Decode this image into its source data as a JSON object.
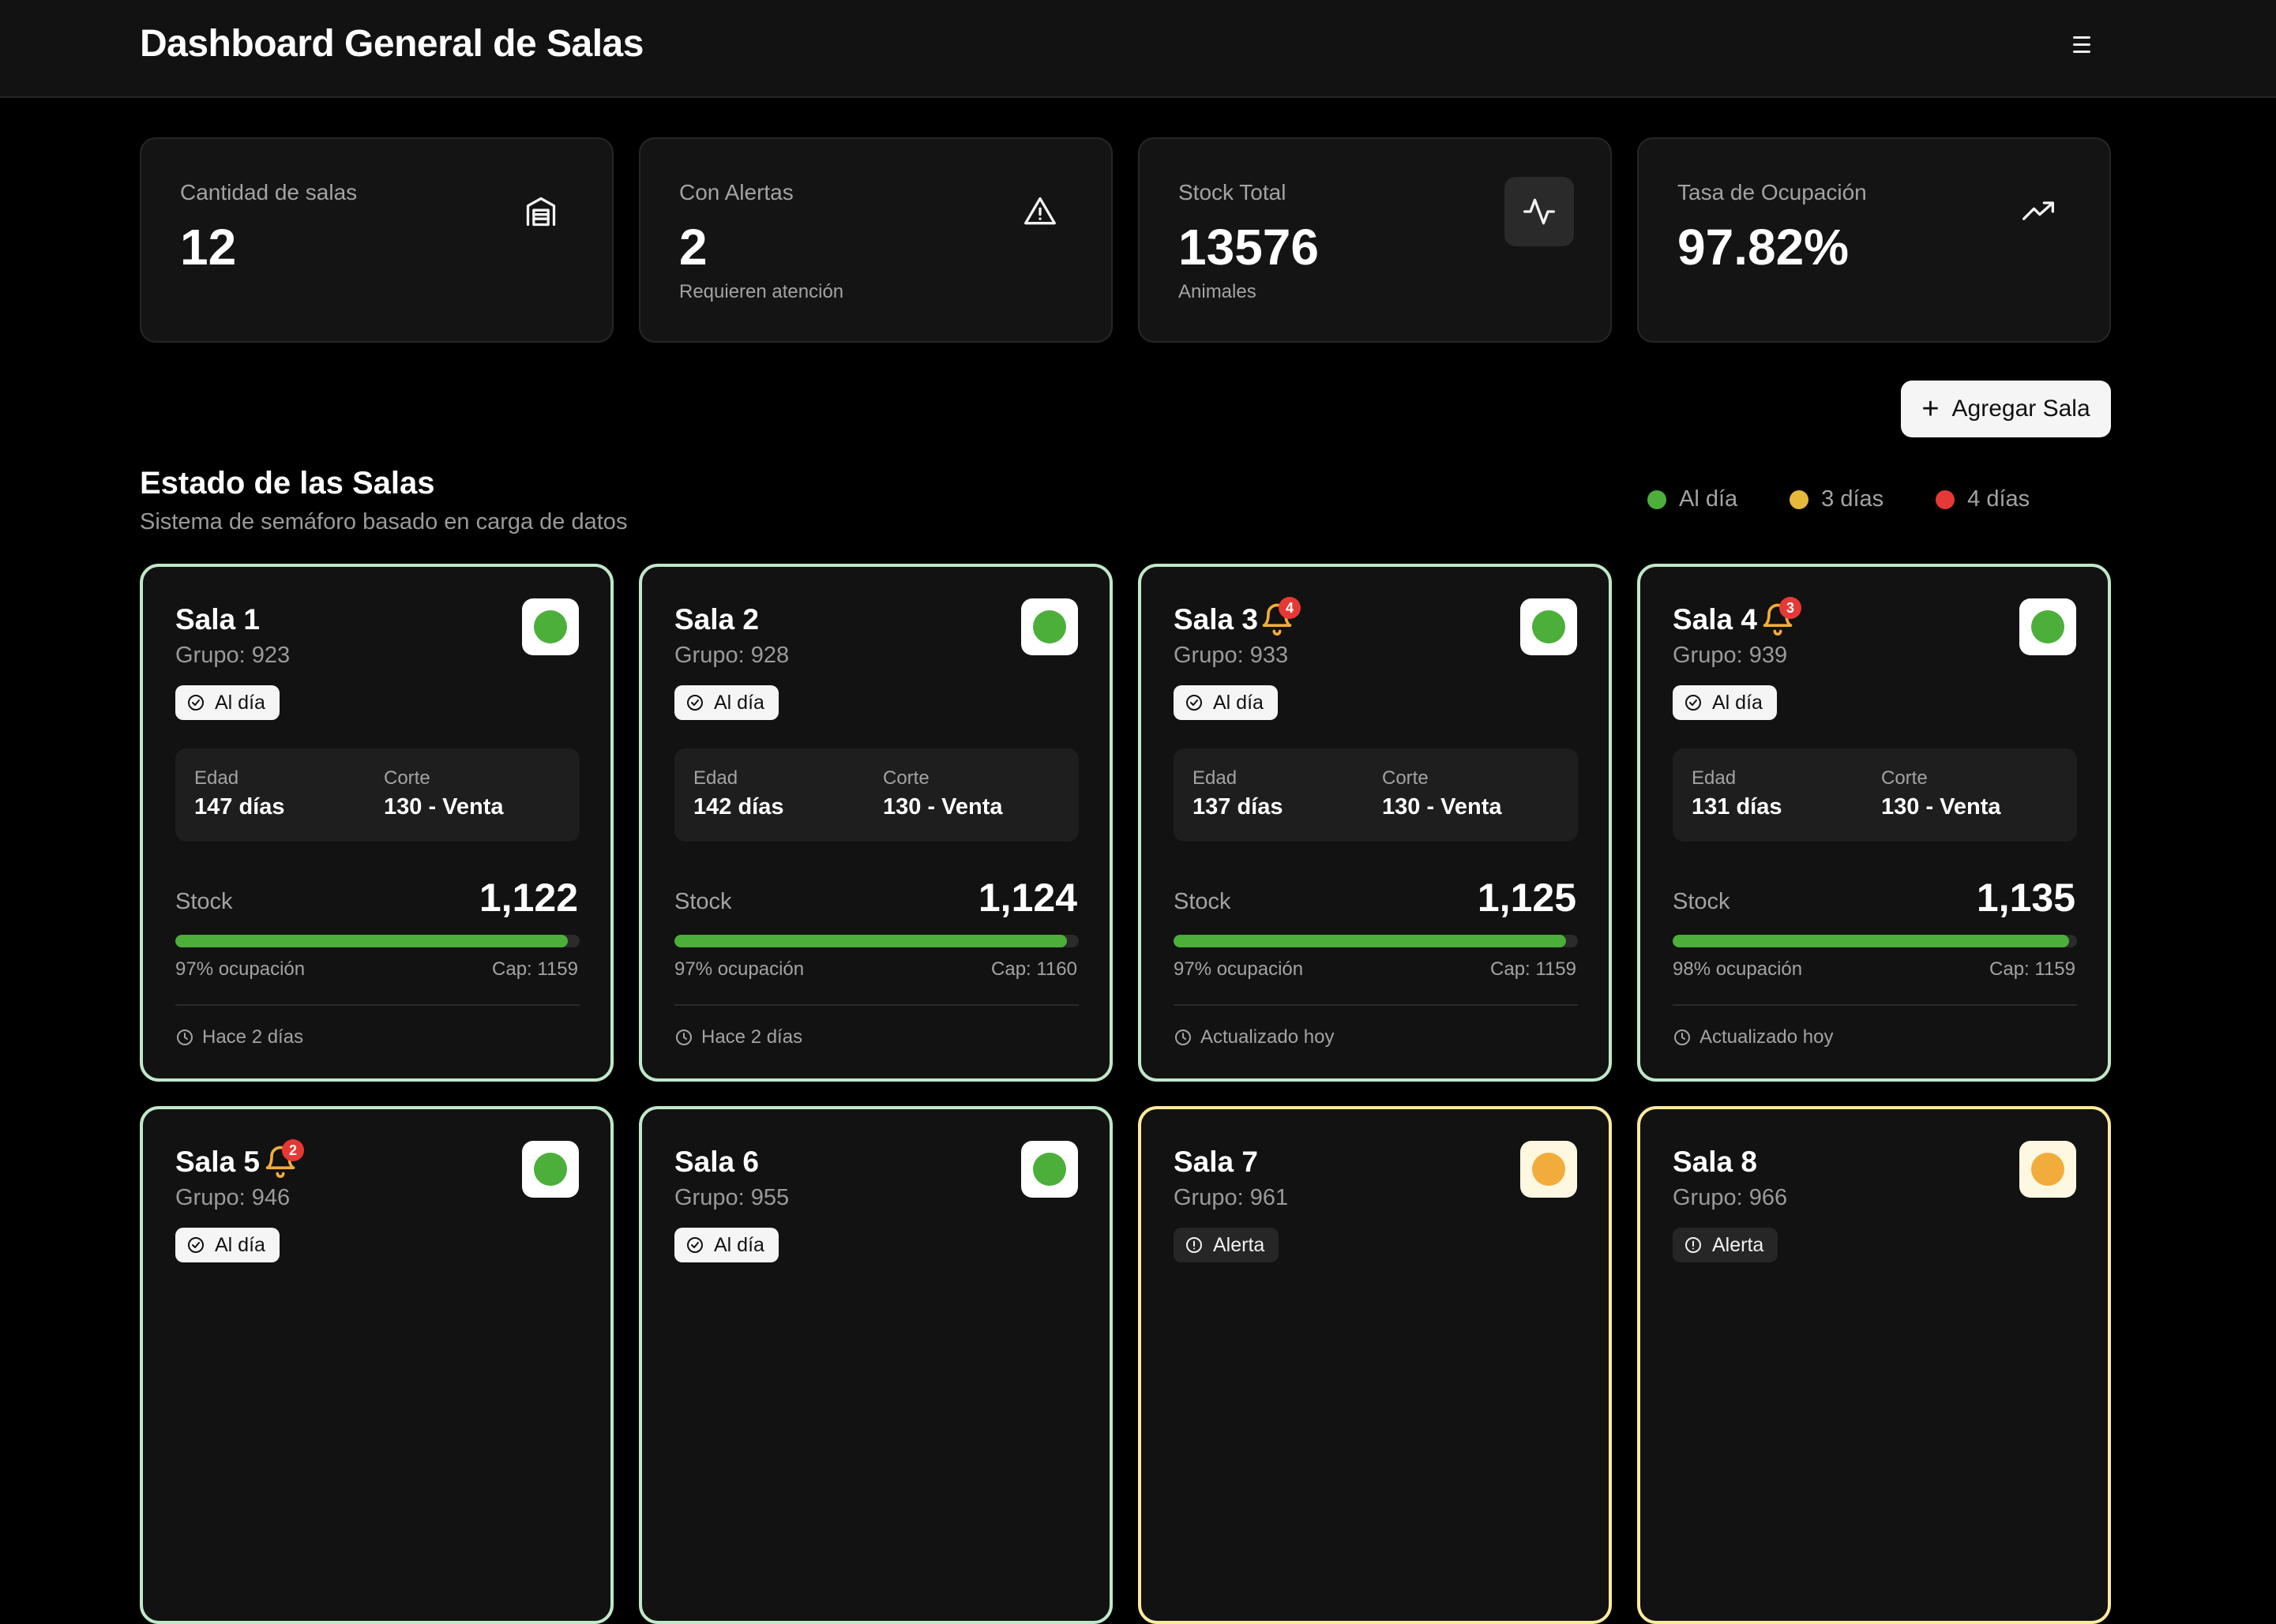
{
  "header": {
    "title": "Dashboard General de Salas",
    "menu_icon": "hamburger-menu-icon"
  },
  "stats": [
    {
      "label": "Cantidad de salas",
      "value": "12",
      "sub": "",
      "icon": "warehouse-icon"
    },
    {
      "label": "Con Alertas",
      "value": "2",
      "sub": "Requieren atención",
      "icon": "alert-triangle-icon"
    },
    {
      "label": "Stock Total",
      "value": "13576",
      "sub": "Animales",
      "icon": "activity-icon"
    },
    {
      "label": "Tasa de Ocupación",
      "value": "97.82%",
      "sub": "",
      "icon": "trending-up-icon"
    }
  ],
  "actions": {
    "add_room_label": "Agregar Sala"
  },
  "section": {
    "title": "Estado de las Salas",
    "subtitle": "Sistema de semáforo basado en carga de datos"
  },
  "legend": [
    {
      "label": "Al día",
      "color": "#4caf3a"
    },
    {
      "label": "3 días",
      "color": "#e7b83a"
    },
    {
      "label": "4 días",
      "color": "#e53935"
    }
  ],
  "colors": {
    "ok": "#4caf3a",
    "warn": "#f2ac3c",
    "alert": "#e53935",
    "bell": "#f2ac3c"
  },
  "labels": {
    "age": "Edad",
    "cut": "Corte",
    "stock": "Stock"
  },
  "rooms": [
    {
      "name": "Sala 1",
      "group": "Grupo: 923",
      "status": "Al día",
      "level": "ok",
      "alerts": null,
      "age": "147 días",
      "cut": "130 - Venta",
      "stock": "1,122",
      "occupancy": 0.97,
      "occupancy_text": "97% ocupación",
      "capacity": "Cap: 1159",
      "updated": "Hace 2 días"
    },
    {
      "name": "Sala 2",
      "group": "Grupo: 928",
      "status": "Al día",
      "level": "ok",
      "alerts": null,
      "age": "142 días",
      "cut": "130 - Venta",
      "stock": "1,124",
      "occupancy": 0.97,
      "occupancy_text": "97% ocupación",
      "capacity": "Cap: 1160",
      "updated": "Hace 2 días"
    },
    {
      "name": "Sala 3",
      "group": "Grupo: 933",
      "status": "Al día",
      "level": "ok",
      "alerts": "4",
      "age": "137 días",
      "cut": "130 - Venta",
      "stock": "1,125",
      "occupancy": 0.97,
      "occupancy_text": "97% ocupación",
      "capacity": "Cap: 1159",
      "updated": "Actualizado hoy"
    },
    {
      "name": "Sala 4",
      "group": "Grupo: 939",
      "status": "Al día",
      "level": "ok",
      "alerts": "3",
      "age": "131 días",
      "cut": "130 - Venta",
      "stock": "1,135",
      "occupancy": 0.98,
      "occupancy_text": "98% ocupación",
      "capacity": "Cap: 1159",
      "updated": "Actualizado hoy"
    },
    {
      "name": "Sala 5",
      "group": "Grupo: 946",
      "status": "Al día",
      "level": "ok",
      "alerts": "2"
    },
    {
      "name": "Sala 6",
      "group": "Grupo: 955",
      "status": "Al día",
      "level": "ok",
      "alerts": null
    },
    {
      "name": "Sala 7",
      "group": "Grupo: 961",
      "status": "Alerta",
      "level": "warn",
      "alerts": null
    },
    {
      "name": "Sala 8",
      "group": "Grupo: 966",
      "status": "Alerta",
      "level": "warn",
      "alerts": null
    }
  ]
}
